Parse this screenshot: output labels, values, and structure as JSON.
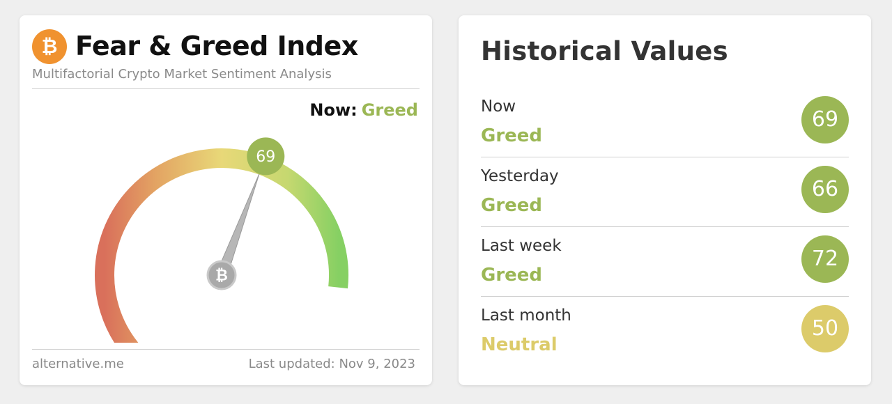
{
  "fear_greed": {
    "logo_glyph": "₿",
    "title": "Fear & Greed Index",
    "subtitle": "Multifactorial Crypto Market Sentiment Analysis",
    "now_label": "Now:",
    "now_value": "Greed",
    "value": 69,
    "value_label": "69",
    "needle_glyph": "₿",
    "footer_source": "alternative.me",
    "footer_updated": "Last updated: Nov 9, 2023",
    "colors": {
      "greed": "#9bb755",
      "neutral": "#dccb6a",
      "fear": "#d9705b",
      "logo": "#f0922f"
    }
  },
  "historical": {
    "title": "Historical Values",
    "rows": [
      {
        "period": "Now",
        "classification": "Greed",
        "value": "69",
        "color": "#9bb755"
      },
      {
        "period": "Yesterday",
        "classification": "Greed",
        "value": "66",
        "color": "#9bb755"
      },
      {
        "period": "Last week",
        "classification": "Greed",
        "value": "72",
        "color": "#9bb755"
      },
      {
        "period": "Last month",
        "classification": "Neutral",
        "value": "50",
        "color": "#dccb6a"
      }
    ]
  }
}
